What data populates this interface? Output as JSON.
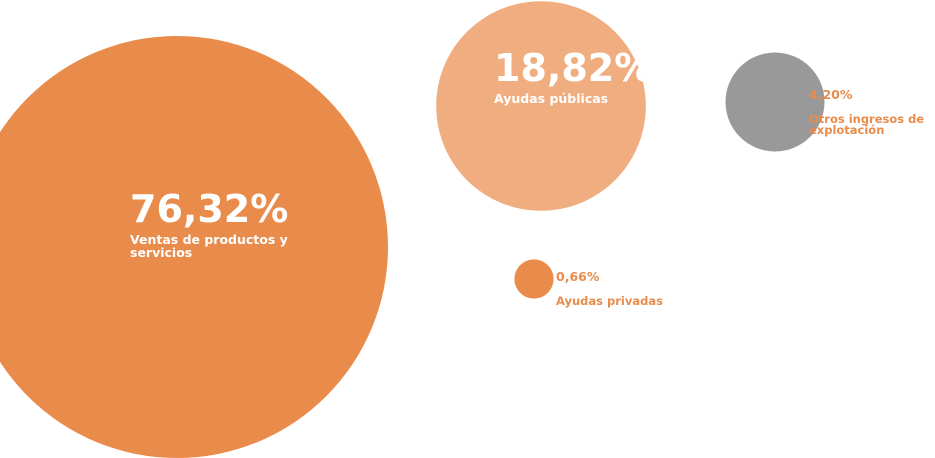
{
  "chart_data": {
    "type": "bubble",
    "unit": "%",
    "series": [
      {
        "value": 76.32,
        "value_label": "76,32%",
        "label_lines": [
          "Ventas de productos y",
          "servicios"
        ],
        "color": "#E98B4A",
        "label_placement": "inside"
      },
      {
        "value": 18.82,
        "value_label": "18,82%",
        "label_lines": [
          "Ayudas públicas"
        ],
        "color": "#F0AE80",
        "label_placement": "inside"
      },
      {
        "value": 4.2,
        "value_label": "4,20%",
        "label_lines": [
          "Otros ingresos de",
          "explotación"
        ],
        "color": "#999999",
        "label_placement": "right"
      },
      {
        "value": 0.66,
        "value_label": "0,66%",
        "label_lines": [
          "Ayudas privadas"
        ],
        "color": "#E98B4A",
        "label_placement": "right"
      }
    ],
    "label_color_outside": "#E98B4A"
  }
}
